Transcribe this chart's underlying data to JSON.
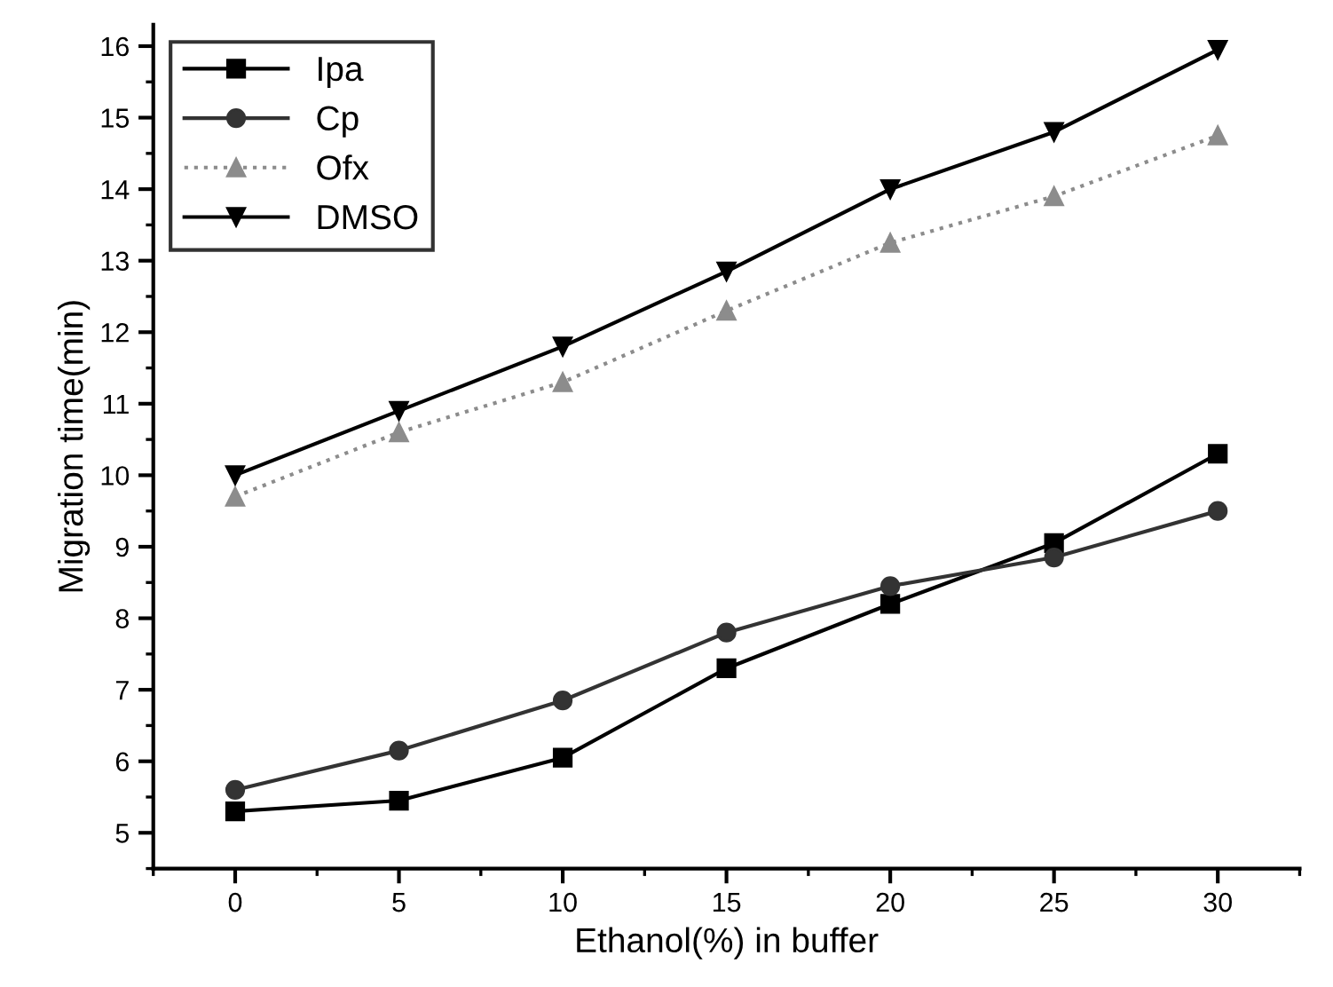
{
  "chart_data": {
    "type": "line",
    "xlabel": "Ethanol(%) in buffer",
    "ylabel": "Migration time(min)",
    "x": [
      0,
      5,
      10,
      15,
      20,
      25,
      30
    ],
    "xlim": [
      -2.5,
      32.5
    ],
    "xticks": [
      0,
      5,
      10,
      15,
      20,
      25,
      30
    ],
    "ylim": [
      4.5,
      16.3
    ],
    "yticks": [
      5,
      6,
      7,
      8,
      9,
      10,
      11,
      12,
      13,
      14,
      15,
      16
    ],
    "grid": false,
    "legend": "top left",
    "series": [
      {
        "name": "Ipa",
        "color": "#000000",
        "marker": "square",
        "line_style": "solid",
        "values": [
          5.3,
          5.45,
          6.05,
          7.3,
          8.2,
          9.05,
          10.3
        ]
      },
      {
        "name": "Cp",
        "color": "#333333",
        "marker": "circle",
        "line_style": "solid",
        "values": [
          5.6,
          6.15,
          6.85,
          7.8,
          8.45,
          8.85,
          9.5
        ]
      },
      {
        "name": "Ofx",
        "color": "#8c8c8c",
        "marker": "triangle",
        "line_style": "dotted",
        "values": [
          9.7,
          10.6,
          11.3,
          12.3,
          13.25,
          13.9,
          14.75
        ]
      },
      {
        "name": "DMSO",
        "color": "#000000",
        "marker": "triangle_down",
        "line_style": "solid",
        "values": [
          10.0,
          10.9,
          11.8,
          12.85,
          14.0,
          14.8,
          15.95
        ]
      }
    ]
  }
}
